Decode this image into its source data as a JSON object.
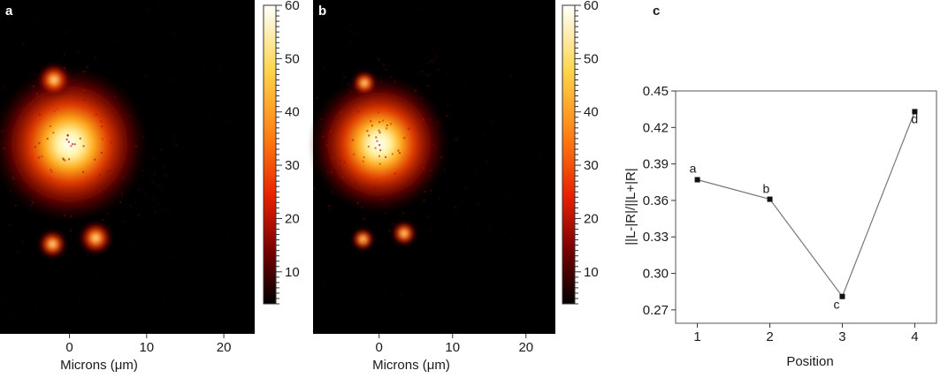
{
  "chart_data": [
    {
      "type": "heatmap",
      "panel_label": "a",
      "xlabel": "Microns (μm)",
      "x_ticks": [
        0,
        10,
        20
      ],
      "xlim": [
        -9,
        24
      ],
      "colorbar": {
        "range": [
          4,
          60
        ],
        "ticks": [
          10,
          20,
          30,
          40,
          50,
          60
        ]
      },
      "spots": [
        {
          "x": 0,
          "y": 0,
          "intensity": 60,
          "spread": 3.2
        },
        {
          "x": -2,
          "y": 8.3,
          "intensity": 30,
          "spread": 0.7
        },
        {
          "x": -2.2,
          "y": -13,
          "intensity": 30,
          "spread": 0.6
        },
        {
          "x": 3.4,
          "y": -12.2,
          "intensity": 35,
          "spread": 0.7
        }
      ],
      "colors": {
        "colormap": [
          "#000000",
          "#7a0000",
          "#e82000",
          "#ff7a10",
          "#ffd54a",
          "#ffffff"
        ]
      }
    },
    {
      "type": "heatmap",
      "panel_label": "b",
      "xlabel": "Microns (μm)",
      "x_ticks": [
        0,
        10,
        20
      ],
      "xlim": [
        -9,
        24
      ],
      "colorbar": {
        "range": [
          4,
          60
        ],
        "ticks": [
          10,
          20,
          30,
          40,
          50,
          60
        ]
      },
      "spots": [
        {
          "x": 0,
          "y": 0,
          "intensity": 55,
          "spread": 3.0
        },
        {
          "x": -2,
          "y": 8.3,
          "intensity": 20,
          "spread": 0.55
        },
        {
          "x": -2.2,
          "y": -13,
          "intensity": 20,
          "spread": 0.5
        },
        {
          "x": 3.4,
          "y": -12.2,
          "intensity": 25,
          "spread": 0.55
        }
      ],
      "colors": {
        "colormap": [
          "#000000",
          "#7a0000",
          "#e82000",
          "#ff7a10",
          "#ffd54a",
          "#ffffff"
        ]
      }
    },
    {
      "type": "line",
      "panel_label": "c",
      "xlabel": "Position",
      "ylabel": "||L-|R|/||L+|R|",
      "x": [
        1,
        2,
        3,
        4
      ],
      "series": [
        {
          "values": [
            0.377,
            0.361,
            0.281,
            0.433
          ],
          "point_labels": [
            "a",
            "b",
            "c",
            "d"
          ]
        }
      ],
      "xlim": [
        0.7,
        4.3
      ],
      "ylim": [
        0.259,
        0.45
      ],
      "x_ticks": [
        1,
        2,
        3,
        4
      ],
      "y_ticks": [
        "0.27",
        "0.30",
        "0.33",
        "0.36",
        "0.39",
        "0.42",
        "0.45"
      ],
      "colors": {
        "line": "#777777",
        "marker": "#111111"
      }
    }
  ]
}
